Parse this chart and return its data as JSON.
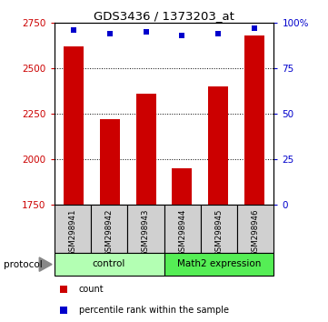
{
  "title": "GDS3436 / 1373203_at",
  "samples": [
    "GSM298941",
    "GSM298942",
    "GSM298943",
    "GSM298944",
    "GSM298945",
    "GSM298946"
  ],
  "bar_values": [
    2620,
    2220,
    2360,
    1950,
    2400,
    2680
  ],
  "percentile_values": [
    96,
    94,
    95,
    93,
    94,
    97
  ],
  "ylim_left": [
    1750,
    2750
  ],
  "ylim_right": [
    0,
    100
  ],
  "yticks_left": [
    1750,
    2000,
    2250,
    2500,
    2750
  ],
  "yticks_right": [
    0,
    25,
    50,
    75,
    100
  ],
  "yticklabels_right": [
    "0",
    "25",
    "50",
    "75",
    "100%"
  ],
  "bar_color": "#cc0000",
  "scatter_color": "#0000cc",
  "groups": [
    {
      "label": "control",
      "indices": [
        0,
        1,
        2
      ],
      "color": "#b3ffb3"
    },
    {
      "label": "Math2 expression",
      "indices": [
        3,
        4,
        5
      ],
      "color": "#55ee55"
    }
  ],
  "protocol_label": "protocol",
  "legend_items": [
    {
      "label": "count",
      "color": "#cc0000"
    },
    {
      "label": "percentile rank within the sample",
      "color": "#0000cc"
    }
  ],
  "tick_label_color_left": "#cc0000",
  "tick_label_color_right": "#0000cc",
  "bar_width": 0.55,
  "xlim": [
    -0.55,
    5.55
  ]
}
